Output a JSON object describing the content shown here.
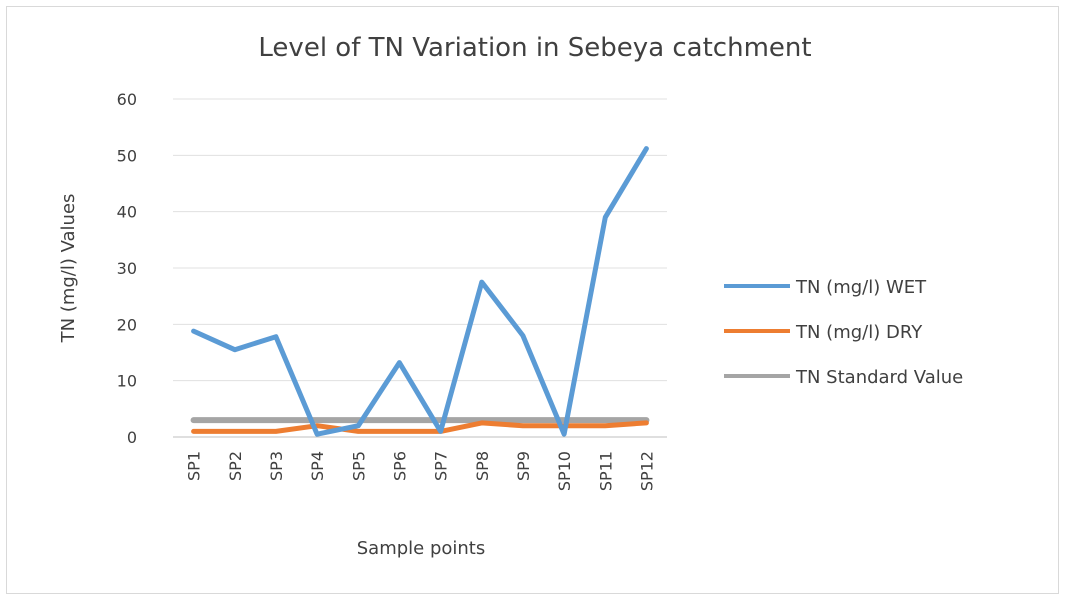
{
  "chart_data": {
    "type": "line",
    "title": "Level of TN Variation in Sebeya catchment",
    "xlabel": "Sample points",
    "ylabel": "TN (mg/l) Values",
    "categories": [
      "SP1",
      "SP2",
      "SP3",
      "SP4",
      "SP5",
      "SP6",
      "SP7",
      "SP8",
      "SP9",
      "SP10",
      "SP11",
      "SP12"
    ],
    "ylim": [
      0,
      60
    ],
    "yticks": [
      "0",
      "10",
      "20",
      "30",
      "40",
      "50",
      "60"
    ],
    "grid": true,
    "legend_position": "right",
    "series": [
      {
        "name": "TN (mg/l) WET",
        "color": "#5b9bd5",
        "values": [
          18.8,
          15.5,
          17.8,
          0.5,
          2.0,
          13.2,
          1.0,
          27.5,
          18.0,
          0.5,
          39.0,
          51.2
        ]
      },
      {
        "name": "TN (mg/l) DRY",
        "color": "#ed7d31",
        "values": [
          1.0,
          1.0,
          1.0,
          2.0,
          1.0,
          1.0,
          1.0,
          2.5,
          2.0,
          2.0,
          2.0,
          2.5
        ]
      },
      {
        "name": "TN Standard Value",
        "color": "#a5a5a5",
        "values": [
          3,
          3,
          3,
          3,
          3,
          3,
          3,
          3,
          3,
          3,
          3,
          3
        ]
      }
    ]
  }
}
